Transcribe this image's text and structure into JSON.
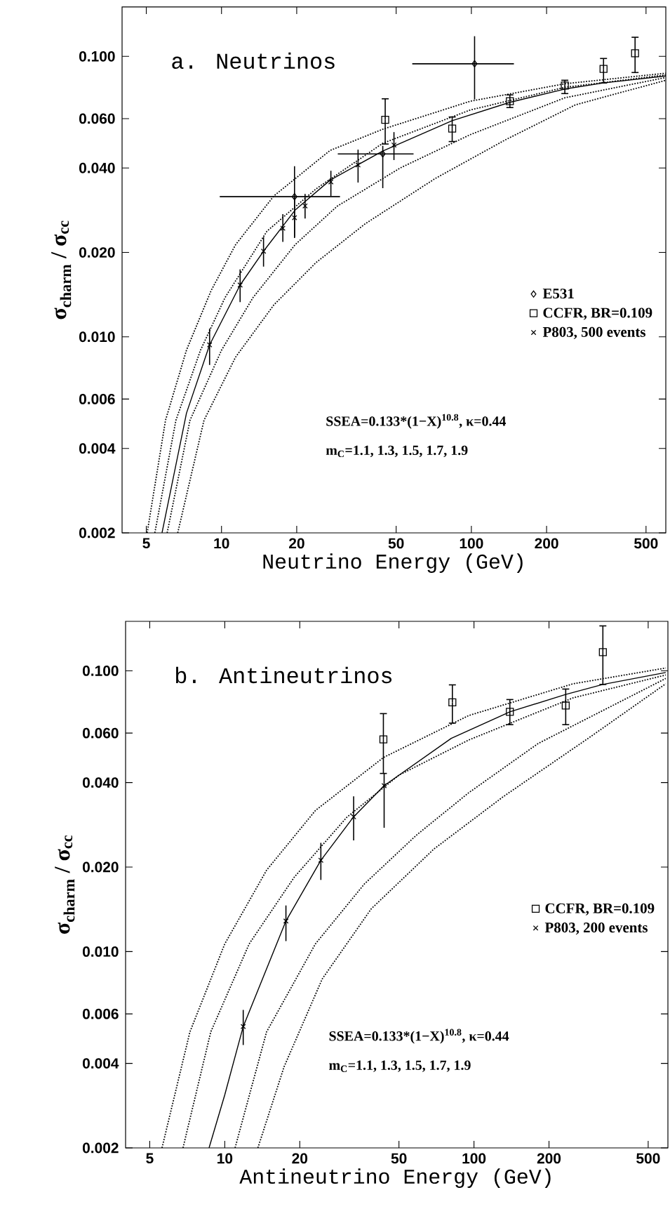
{
  "chart_data": [
    {
      "type": "scatter",
      "title": "a. Neutrinos",
      "xlabel": "Neutrino Energy (GeV)",
      "ylabel": "σ$_{charm}$ / σ$_{cc}$",
      "log": "xy",
      "legend": "right",
      "xlim": [
        4,
        600
      ],
      "ylim": [
        0.002,
        0.15
      ],
      "xticks": [
        5,
        10,
        20,
        50,
        100,
        200,
        500
      ],
      "yticks": [
        {
          "value": 0.002,
          "label": "0.002"
        },
        {
          "value": 0.004,
          "label": "0.004"
        },
        {
          "value": 0.006,
          "label": "0.006"
        },
        {
          "value": 0.01,
          "label": "0.010"
        },
        {
          "value": 0.02,
          "label": "0.020"
        },
        {
          "value": 0.04,
          "label": "0.040"
        },
        {
          "value": 0.06,
          "label": "0.060"
        },
        {
          "value": 0.1,
          "label": "0.100"
        }
      ],
      "annotations": [
        "SSEA=0.133*(1−X)$^{10.8}$, κ=0.44",
        "m$_{C}$=1.1, 1.3, 1.5, 1.7, 1.9"
      ],
      "series": [
        {
          "name": "E531",
          "marker": "diamond",
          "color": "#000000",
          "x": [
            19.6,
            44.2,
            103
          ],
          "values": [
            0.0316,
            0.0449,
            0.0941
          ],
          "xerrors": [
            [
              9.84,
              29.8
            ],
            [
              29.2,
              58.7
            ],
            [
              58,
              148
            ]
          ],
          "errors": [
            [
              0.0225,
              0.0406
            ],
            [
              0.0339,
              0.048
            ],
            [
              0.0702,
              0.118
            ]
          ]
        },
        {
          "name": "CCFR, BR=0.109",
          "marker": "square",
          "color": "#000000",
          "x": [
            45.2,
            83.8,
            142.6,
            236.6,
            338,
            452
          ],
          "values": [
            0.0594,
            0.0553,
            0.0692,
            0.0787,
            0.0902,
            0.1026
          ],
          "errors": [
            [
              0.0487,
              0.0706
            ],
            [
              0.0497,
              0.0608
            ],
            [
              0.0657,
              0.0729
            ],
            [
              0.0737,
              0.0822
            ],
            [
              0.0804,
              0.0983
            ],
            [
              0.0876,
              0.117
            ]
          ]
        },
        {
          "name": "P803, 500 events",
          "marker": "cross",
          "color": "#000000",
          "x": [
            8.96,
            11.87,
            14.73,
            17.6,
            19.6,
            21.6,
            27.4,
            35.2,
            49
          ],
          "values": [
            0.00936,
            0.0153,
            0.0202,
            0.0244,
            0.0266,
            0.0293,
            0.0357,
            0.041,
            0.0483
          ],
          "errors": [
            [
              0.00794,
              0.0107
            ],
            [
              0.0133,
              0.0174
            ],
            [
              0.0178,
              0.0227
            ],
            [
              0.0218,
              0.0274
            ],
            [
              0.0227,
              0.0313
            ],
            [
              0.0264,
              0.0323
            ],
            [
              0.0318,
              0.0391
            ],
            [
              0.0355,
              0.0465
            ],
            [
              0.0427,
              0.0537
            ]
          ]
        },
        {
          "type": "line",
          "marker": "none",
          "line_style": "dotted",
          "color": "#000000",
          "x": [
            5.04,
            5.97,
            7.24,
            9.08,
            11.38,
            16.2,
            27.2,
            44.2,
            99,
            236.9,
            600
          ],
          "values": [
            0.002,
            0.00504,
            0.00896,
            0.0146,
            0.0213,
            0.0318,
            0.0462,
            0.055,
            0.0692,
            0.0799,
            0.0871
          ]
        },
        {
          "type": "line",
          "marker": "none",
          "line_style": "dotted",
          "color": "#000000",
          "x": [
            5.41,
            6.57,
            8.24,
            10.33,
            15.2,
            23.9,
            44.2,
            99,
            236.9,
            600
          ],
          "values": [
            0.002,
            0.00504,
            0.00896,
            0.0138,
            0.0238,
            0.0337,
            0.049,
            0.0644,
            0.0776,
            0.0859
          ]
        },
        {
          "type": "line",
          "marker": "none",
          "line_style": "solid",
          "color": "#000000",
          "x": [
            5.78,
            7.24,
            8.96,
            11.87,
            14.73,
            19.7,
            27.2,
            44.2,
            83.8,
            142.6,
            236.6,
            338,
            600
          ],
          "values": [
            0.002,
            0.00534,
            0.00936,
            0.0153,
            0.0202,
            0.0283,
            0.0362,
            0.046,
            0.059,
            0.0686,
            0.0765,
            0.0804,
            0.0851
          ]
        },
        {
          "type": "line",
          "marker": "none",
          "line_style": "dotted",
          "color": "#000000",
          "x": [
            6.06,
            7.48,
            10,
            13.37,
            19.7,
            29.0,
            51.9,
            99,
            236.9,
            600
          ],
          "values": [
            0.002,
            0.00504,
            0.00896,
            0.0138,
            0.0213,
            0.0292,
            0.04,
            0.0526,
            0.0712,
            0.0841
          ]
        },
        {
          "type": "line",
          "marker": "none",
          "line_style": "dotted",
          "color": "#000000",
          "x": [
            6.68,
            8.51,
            11.38,
            16.2,
            23.9,
            37.6,
            71.7,
            136.8,
            261,
            600
          ],
          "values": [
            0.002,
            0.00504,
            0.00846,
            0.013,
            0.0184,
            0.0253,
            0.0367,
            0.0504,
            0.0672,
            0.0822
          ]
        }
      ]
    },
    {
      "type": "scatter",
      "title": "b. Antineutrinos",
      "xlabel": "Antineutrino Energy (GeV)",
      "ylabel": "σ$_{charm}$ / σ$_{cc}$",
      "log": "xy",
      "legend": "right",
      "xlim": [
        4,
        600
      ],
      "ylim": [
        0.002,
        0.15
      ],
      "xticks": [
        5,
        10,
        20,
        50,
        100,
        200,
        500
      ],
      "yticks": [
        {
          "value": 0.002,
          "label": "0.002"
        },
        {
          "value": 0.004,
          "label": "0.004"
        },
        {
          "value": 0.006,
          "label": "0.006"
        },
        {
          "value": 0.01,
          "label": "0.010"
        },
        {
          "value": 0.02,
          "label": "0.020"
        },
        {
          "value": 0.04,
          "label": "0.040"
        },
        {
          "value": 0.06,
          "label": "0.060"
        },
        {
          "value": 0.1,
          "label": "0.100"
        }
      ],
      "annotations": [
        "SSEA=0.133*(1−X)$^{10.8}$, κ=0.44",
        "m$_{C}$=1.1, 1.3, 1.5, 1.7, 1.9"
      ],
      "series": [
        {
          "name": "CCFR, BR=0.109",
          "marker": "square",
          "color": "#000000",
          "x": [
            43.3,
            81.9,
            139.3,
            233.4,
            329
          ],
          "values": [
            0.057,
            0.0772,
            0.0714,
            0.0752,
            0.1165
          ],
          "errors": [
            [
              0.0431,
              0.0704
            ],
            [
              0.0651,
              0.0891
            ],
            [
              0.0643,
              0.079
            ],
            [
              0.0643,
              0.0861
            ],
            [
              0.0894,
              0.1445
            ]
          ]
        },
        {
          "name": "P803, 200 events",
          "marker": "cross",
          "color": "#000000",
          "x": [
            11.86,
            17.6,
            24.3,
            32.9,
            43.6
          ],
          "values": [
            0.00541,
            0.01285,
            0.02115,
            0.0302,
            0.039
          ],
          "errors": [
            [
              0.00465,
              0.0062
            ],
            [
              0.0109,
              0.0146
            ],
            [
              0.018,
              0.0244
            ],
            [
              0.0249,
              0.0357
            ],
            [
              0.0276,
              0.0431
            ]
          ]
        },
        {
          "type": "line",
          "marker": "none",
          "line_style": "dotted",
          "color": "#000000",
          "x": [
            5.6,
            7.25,
            10,
            14.72,
            23.1,
            43.3,
            95.3,
            250,
            588
          ],
          "values": [
            0.002,
            0.00518,
            0.01065,
            0.0195,
            0.0318,
            0.0491,
            0.0693,
            0.0899,
            0.1023
          ]
        },
        {
          "type": "line",
          "marker": "none",
          "line_style": "dotted",
          "color": "#000000",
          "x": [
            6.8,
            8.79,
            12.53,
            19.0,
            30.9,
            50.0,
            95.3,
            250,
            588
          ],
          "values": [
            0.002,
            0.00518,
            0.01065,
            0.0184,
            0.0301,
            0.0425,
            0.0567,
            0.0801,
            0.0966
          ]
        },
        {
          "type": "line",
          "marker": "none",
          "line_style": "solid",
          "color": "#000000",
          "x": [
            8.65,
            10,
            11.86,
            17.6,
            24.3,
            32.9,
            43.6,
            81.1,
            139.3,
            233.4,
            329,
            588
          ],
          "values": [
            0.002,
            0.00309,
            0.00541,
            0.01285,
            0.02115,
            0.0302,
            0.039,
            0.0575,
            0.0714,
            0.0824,
            0.0894,
            0.0986
          ]
        },
        {
          "type": "line",
          "marker": "none",
          "line_style": "dotted",
          "color": "#000000",
          "x": [
            11.0,
            14.72,
            23.1,
            36.3,
            58.8,
            95.3,
            181,
            588
          ],
          "values": [
            0.002,
            0.00518,
            0.01065,
            0.0174,
            0.026,
            0.0368,
            0.0551,
            0.0939
          ]
        },
        {
          "type": "line",
          "marker": "none",
          "line_style": "dotted",
          "color": "#000000",
          "x": [
            13.58,
            17.3,
            24.6,
            38.7,
            69.1,
            131.5,
            294,
            588
          ],
          "values": [
            0.002,
            0.00389,
            0.00799,
            0.0142,
            0.0232,
            0.0357,
            0.0583,
            0.0899
          ]
        }
      ]
    }
  ]
}
